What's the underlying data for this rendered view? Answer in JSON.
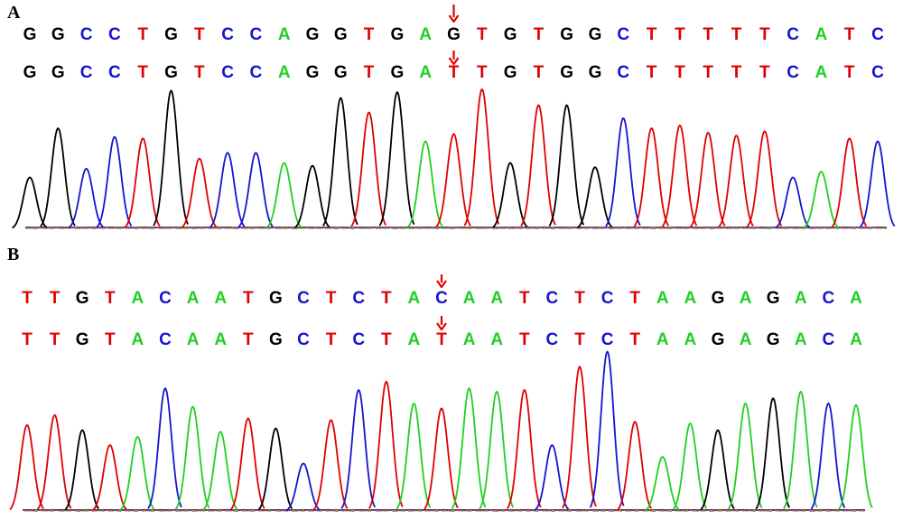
{
  "colors": {
    "G": "#000000",
    "C": "#1515d0",
    "T": "#e00000",
    "A": "#20d020",
    "marker": "#e00000"
  },
  "panels": [
    {
      "label": "A",
      "reference": "GGCCTGTCCAGGTGAGTGTGGCTTTTTCATC",
      "mutant": "GGCCTGTCCAGGTGATTGTGGCTTTTTCATC",
      "mutation_index": 15,
      "trace_heights": [
        0.36,
        0.7,
        0.42,
        0.64,
        0.63,
        0.96,
        0.49,
        0.53,
        0.53,
        0.46,
        0.44,
        0.91,
        0.81,
        0.95,
        0.61,
        0.66,
        0.97,
        0.46,
        0.86,
        0.86,
        0.43,
        0.77,
        0.7,
        0.72,
        0.67,
        0.65,
        0.68,
        0.36,
        0.4,
        0.63,
        0.61
      ]
    },
    {
      "label": "B",
      "reference": "TTGTACAATGCTCTACAATCTCTAAGAGACA",
      "mutant": "TTGTACAATGCTCTATAATCTCTAAGAGACA",
      "mutation_index": 15,
      "trace_heights": [
        0.52,
        0.58,
        0.49,
        0.4,
        0.45,
        0.74,
        0.63,
        0.48,
        0.56,
        0.5,
        0.29,
        0.55,
        0.73,
        0.78,
        0.65,
        0.62,
        0.74,
        0.72,
        0.73,
        0.4,
        0.87,
        0.96,
        0.54,
        0.33,
        0.53,
        0.49,
        0.65,
        0.68,
        0.72,
        0.65,
        0.64
      ]
    }
  ]
}
